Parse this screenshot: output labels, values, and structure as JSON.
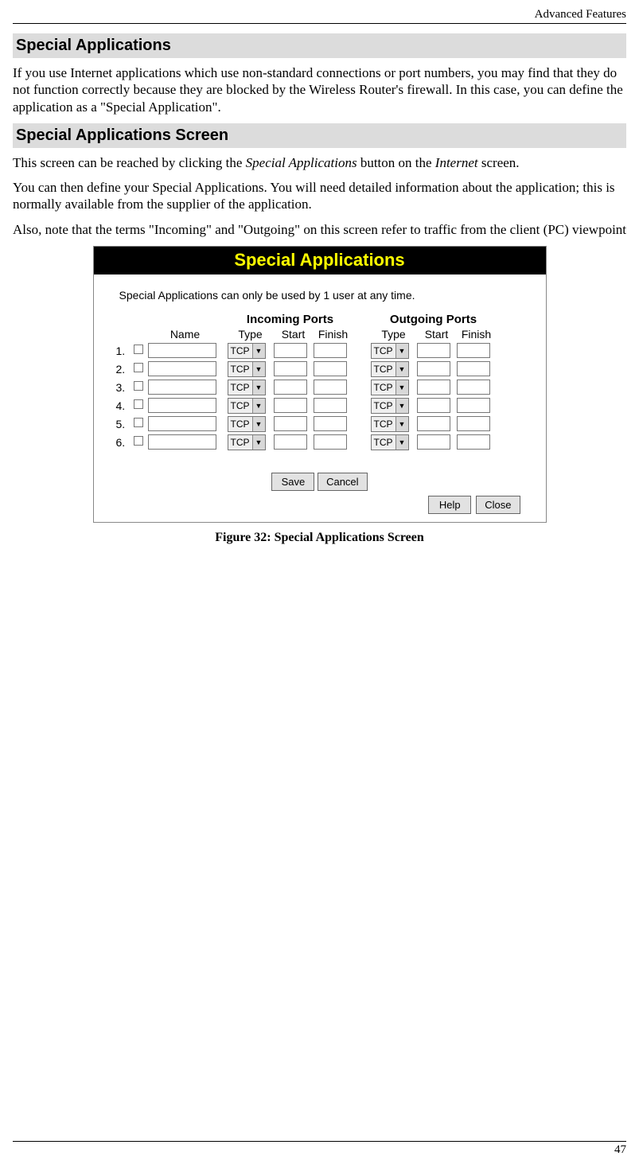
{
  "header_right": "Advanced Features",
  "heading1": "Special Applications",
  "para1": "If you use Internet applications which use non-standard connections or port numbers, you may find that they do not function correctly because they are blocked by the Wireless Router's firewall. In this case, you can define the application as a \"Special Application\".",
  "heading2": "Special Applications Screen",
  "para2_pre": "This screen can be reached by clicking the ",
  "para2_em1": "Special Applications",
  "para2_mid": " button on the ",
  "para2_em2": "Internet",
  "para2_post": " screen.",
  "para3": "You can then define your Special Applications. You will need detailed information about the application; this is normally available from the supplier of the application.",
  "para4": "Also, note that the terms \"Incoming\" and \"Outgoing\" on this screen refer to traffic from the client (PC) viewpoint",
  "screenshot": {
    "title": "Special Applications",
    "note": "Special Applications can only be used by 1 user at any time.",
    "head_incoming": "Incoming Ports",
    "head_outgoing": "Outgoing Ports",
    "col_name": "Name",
    "col_type": "Type",
    "col_start": "Start",
    "col_finish": "Finish",
    "type_value": "TCP",
    "row_count": 6,
    "btn_save": "Save",
    "btn_cancel": "Cancel",
    "btn_help": "Help",
    "btn_close": "Close",
    "colors": {
      "title_bg": "#000000",
      "title_fg": "#ffff00",
      "border": "#888888",
      "button_bg": "#e2e2e2",
      "select_bg": "#efefef"
    }
  },
  "caption": "Figure 32: Special Applications Screen",
  "page_number": "47"
}
